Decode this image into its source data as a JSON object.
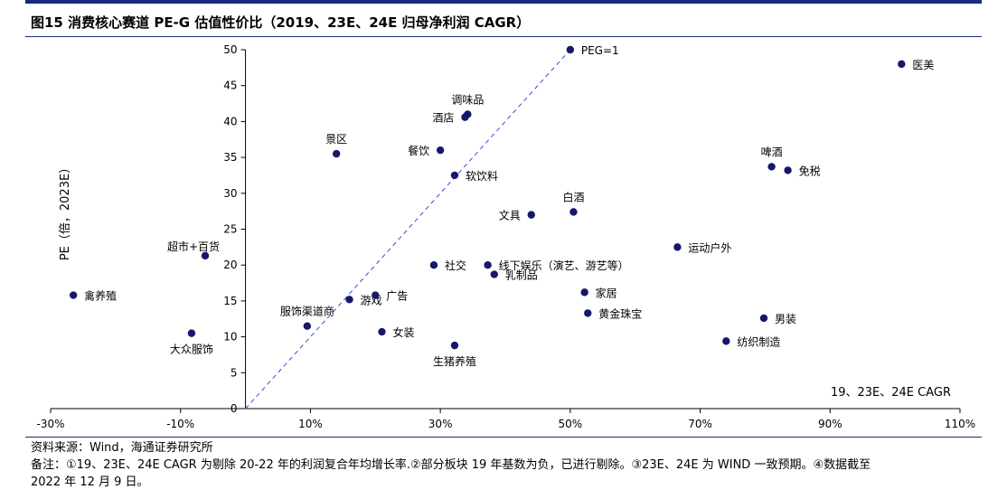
{
  "header": {
    "title": "图15 消费核心赛道 PE-G 估值性价比（2019、23E、24E 归母净利润 CAGR）"
  },
  "footer": {
    "source": "资料来源：Wind，海通证券研究所",
    "note_line1": "备注：①19、23E、24E CAGR 为剔除 20-22 年的利润复合年均增长率.②部分板块 19 年基数为负，已进行剔除。③23E、24E 为 WIND 一致预期。④数据截至",
    "note_line2": "2022 年 12 月 9 日。"
  },
  "colors": {
    "point": "#15186b",
    "refline": "#3a4bd6",
    "axis": "#000000"
  },
  "chart_data": {
    "type": "scatter",
    "xlabel": "19、23E、24E CAGR",
    "ylabel": "PE（倍，2023E）",
    "xlim": [
      -30,
      110
    ],
    "ylim": [
      0,
      50
    ],
    "x_ticks": [
      -30,
      -10,
      10,
      30,
      50,
      70,
      90,
      110
    ],
    "x_tick_labels": [
      "-30%",
      "-10%",
      "10%",
      "30%",
      "50%",
      "70%",
      "90%",
      "110%"
    ],
    "y_ticks": [
      0,
      5,
      10,
      15,
      20,
      25,
      30,
      35,
      40,
      45,
      50
    ],
    "y_tick_labels": [
      "0",
      "5",
      "10",
      "15",
      "20",
      "25",
      "30",
      "35",
      "40",
      "45",
      "50"
    ],
    "reference_line": {
      "label": "PEG=1",
      "x": [
        0,
        50
      ],
      "y": [
        0,
        50
      ]
    },
    "points": [
      {
        "label": "医美",
        "x": 101,
        "y": 48,
        "pos": "right"
      },
      {
        "label": "调味品",
        "x": 34.2,
        "y": 41,
        "pos": "above"
      },
      {
        "label": "酒店",
        "x": 33.8,
        "y": 40.6,
        "pos": "left"
      },
      {
        "label": "景区",
        "x": 14,
        "y": 35.5,
        "pos": "above"
      },
      {
        "label": "餐饮",
        "x": 30,
        "y": 36,
        "pos": "left"
      },
      {
        "label": "啤酒",
        "x": 81,
        "y": 33.7,
        "pos": "above"
      },
      {
        "label": "免税",
        "x": 83.5,
        "y": 33.2,
        "pos": "right"
      },
      {
        "label": "软饮料",
        "x": 32.2,
        "y": 32.5,
        "pos": "right"
      },
      {
        "label": "白酒",
        "x": 50.5,
        "y": 27.4,
        "pos": "above"
      },
      {
        "label": "文具",
        "x": 44,
        "y": 27,
        "pos": "left"
      },
      {
        "label": "超市+百货",
        "x": -6.2,
        "y": 21.3,
        "pos": "aboveleft"
      },
      {
        "label": "运动户外",
        "x": 66.5,
        "y": 22.5,
        "pos": "right"
      },
      {
        "label": "社交",
        "x": 29,
        "y": 20,
        "pos": "right"
      },
      {
        "label": "线下娱乐（演艺、游艺等）",
        "x": 37.3,
        "y": 20,
        "pos": "right"
      },
      {
        "label": "乳制品",
        "x": 38.3,
        "y": 18.7,
        "pos": "right"
      },
      {
        "label": "禽养殖",
        "x": -26.5,
        "y": 15.8,
        "pos": "right"
      },
      {
        "label": "游戏",
        "x": 16,
        "y": 15.2,
        "pos": "right"
      },
      {
        "label": "广告",
        "x": 20,
        "y": 15.8,
        "pos": "right"
      },
      {
        "label": "家居",
        "x": 52.2,
        "y": 16.2,
        "pos": "right"
      },
      {
        "label": "服饰渠道商",
        "x": 9.5,
        "y": 11.5,
        "pos": "above"
      },
      {
        "label": "黄金珠宝",
        "x": 52.7,
        "y": 13.3,
        "pos": "right"
      },
      {
        "label": "男装",
        "x": 79.8,
        "y": 12.6,
        "pos": "right"
      },
      {
        "label": "大众服饰",
        "x": -8.3,
        "y": 10.5,
        "pos": "below"
      },
      {
        "label": "女装",
        "x": 21,
        "y": 10.7,
        "pos": "right"
      },
      {
        "label": "纺织制造",
        "x": 74,
        "y": 9.4,
        "pos": "right"
      },
      {
        "label": "生猪养殖",
        "x": 32.2,
        "y": 8.8,
        "pos": "below"
      }
    ]
  }
}
